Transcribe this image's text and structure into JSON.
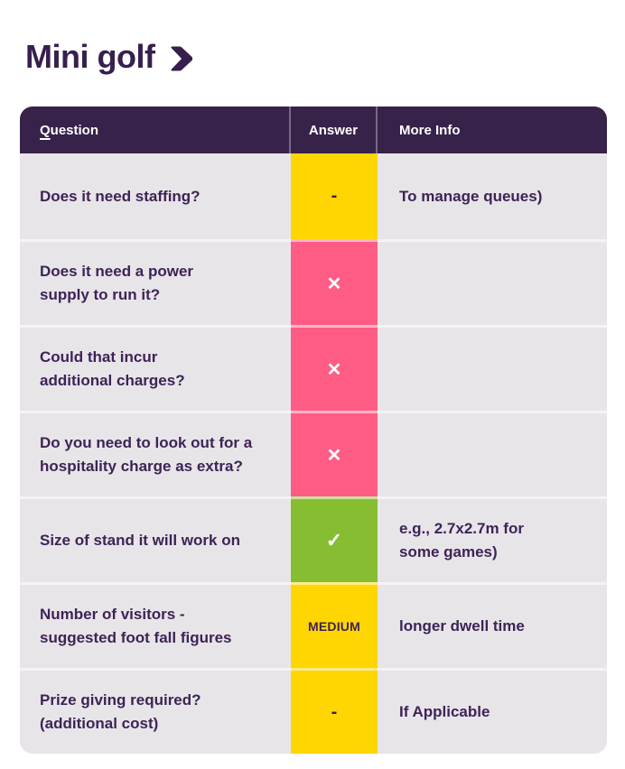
{
  "page": {
    "title": "Mini golf"
  },
  "colors": {
    "title_text": "#371F4E",
    "header_bg": "#37224A",
    "row_bg": "#E8E5E9",
    "cell_text": "#3D2356",
    "yellow": "#FFD502",
    "pink": "#FF5C85",
    "green": "#87BD30"
  },
  "table": {
    "header": {
      "question": {
        "first_letter": "Q",
        "rest": "uestion"
      },
      "answer": "Answer",
      "more_info": "More Info"
    },
    "rows": [
      {
        "question": "Does it need staffing?",
        "answer": {
          "kind": "dash",
          "symbol": "-",
          "bg": "#FFD502",
          "fg": "#3D2356"
        },
        "more_info": "To manage queues)"
      },
      {
        "question": "Does it need a power\nsupply to run it?",
        "answer": {
          "kind": "cross",
          "symbol": "✕",
          "bg": "#FF5C85",
          "fg": "#FFFFFF"
        },
        "more_info": ""
      },
      {
        "question": "Could that incur\nadditional charges?",
        "answer": {
          "kind": "cross",
          "symbol": "✕",
          "bg": "#FF5C85",
          "fg": "#FFFFFF"
        },
        "more_info": ""
      },
      {
        "question": "Do you need to look out for a\nhospitality charge as extra?",
        "answer": {
          "kind": "cross",
          "symbol": "✕",
          "bg": "#FF5C85",
          "fg": "#FFFFFF"
        },
        "more_info": ""
      },
      {
        "question": "Size of stand it will work on",
        "answer": {
          "kind": "check",
          "symbol": "✓",
          "bg": "#87BD30",
          "fg": "#FFFFFF"
        },
        "more_info": "e.g., 2.7x2.7m for\nsome games)"
      },
      {
        "question": "Number of visitors -\nsuggested foot fall figures",
        "answer": {
          "kind": "text",
          "symbol": "MEDIUM",
          "bg": "#FFD502",
          "fg": "#3D2356"
        },
        "more_info": "longer dwell time"
      },
      {
        "question": "Prize giving required?\n(additional cost)",
        "answer": {
          "kind": "dash",
          "symbol": "-",
          "bg": "#FFD502",
          "fg": "#3D2356"
        },
        "more_info": "If Applicable"
      }
    ]
  }
}
